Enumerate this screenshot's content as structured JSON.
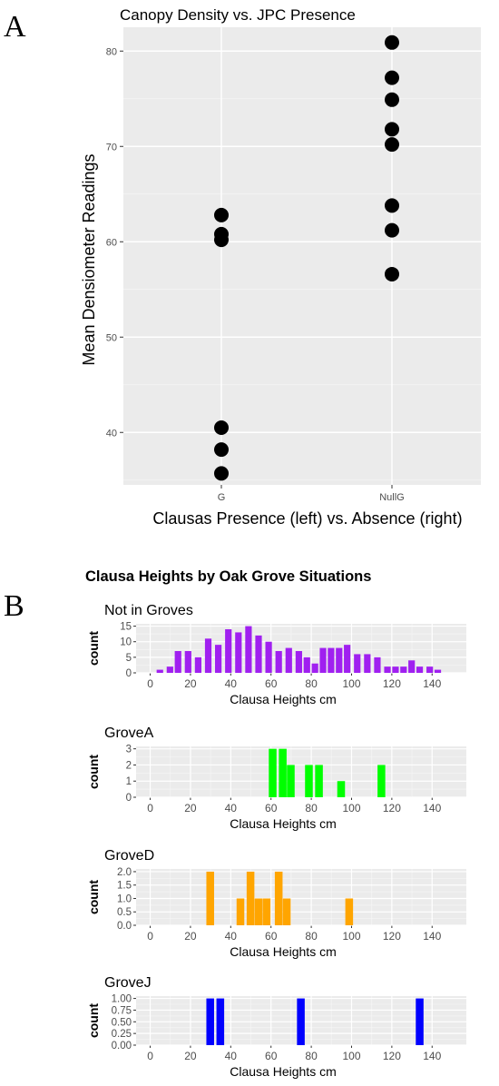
{
  "panel_a": {
    "letter": "A",
    "chart_data": {
      "type": "scatter",
      "title": "Canopy Density vs. JPC Presence",
      "xlabel": "Clausas Presence (left) vs. Absence (right)",
      "ylabel": "Mean Densiometer Readings",
      "categories": [
        "G",
        "NullG"
      ],
      "ylim": [
        34.5,
        82.5
      ],
      "yticks": [
        40,
        50,
        60,
        70,
        80
      ],
      "grid": true,
      "points": [
        {
          "x": "G",
          "y": 62.8
        },
        {
          "x": "G",
          "y": 60.8
        },
        {
          "x": "G",
          "y": 60.2
        },
        {
          "x": "G",
          "y": 40.5
        },
        {
          "x": "G",
          "y": 38.2
        },
        {
          "x": "G",
          "y": 35.7
        },
        {
          "x": "NullG",
          "y": 80.9
        },
        {
          "x": "NullG",
          "y": 77.2
        },
        {
          "x": "NullG",
          "y": 74.9
        },
        {
          "x": "NullG",
          "y": 71.8
        },
        {
          "x": "NullG",
          "y": 70.2
        },
        {
          "x": "NullG",
          "y": 63.8
        },
        {
          "x": "NullG",
          "y": 61.2
        },
        {
          "x": "NullG",
          "y": 56.6
        }
      ]
    }
  },
  "panel_b": {
    "letter": "B",
    "title": "Clausa Heights by Oak Grove Situations",
    "chart_data": [
      {
        "type": "bar",
        "title": "Not in Groves",
        "xlabel": "Clausa Heights cm",
        "ylabel": "count",
        "color": "#a020f0",
        "xlim": [
          -7,
          157
        ],
        "xticks": [
          0,
          20,
          40,
          60,
          80,
          100,
          120,
          140
        ],
        "ylim": [
          0,
          15.75
        ],
        "yticks": [
          0,
          5,
          10,
          15
        ],
        "ytick_labels": [
          "0",
          "5",
          "10",
          "15"
        ],
        "bin_width": 3.6,
        "bars": [
          {
            "x": 5,
            "y": 1
          },
          {
            "x": 10,
            "y": 2
          },
          {
            "x": 14,
            "y": 7
          },
          {
            "x": 19,
            "y": 7
          },
          {
            "x": 24,
            "y": 5
          },
          {
            "x": 29,
            "y": 11
          },
          {
            "x": 34,
            "y": 9
          },
          {
            "x": 39,
            "y": 14
          },
          {
            "x": 44,
            "y": 13
          },
          {
            "x": 49,
            "y": 15
          },
          {
            "x": 54,
            "y": 12
          },
          {
            "x": 59,
            "y": 10
          },
          {
            "x": 64,
            "y": 7
          },
          {
            "x": 69,
            "y": 8
          },
          {
            "x": 74,
            "y": 7
          },
          {
            "x": 78,
            "y": 5
          },
          {
            "x": 82,
            "y": 3
          },
          {
            "x": 86,
            "y": 8
          },
          {
            "x": 90,
            "y": 8
          },
          {
            "x": 94,
            "y": 8
          },
          {
            "x": 98,
            "y": 9
          },
          {
            "x": 103,
            "y": 6
          },
          {
            "x": 108,
            "y": 6
          },
          {
            "x": 113,
            "y": 5
          },
          {
            "x": 118,
            "y": 2
          },
          {
            "x": 122,
            "y": 2
          },
          {
            "x": 126,
            "y": 2
          },
          {
            "x": 130,
            "y": 4
          },
          {
            "x": 134,
            "y": 2
          },
          {
            "x": 139,
            "y": 2
          },
          {
            "x": 143,
            "y": 1
          }
        ]
      },
      {
        "type": "bar",
        "title": "GroveA",
        "xlabel": "Clausa Heights cm",
        "ylabel": "count",
        "color": "#00ff00",
        "xlim": [
          -7,
          157
        ],
        "xticks": [
          0,
          20,
          40,
          60,
          80,
          100,
          120,
          140
        ],
        "ylim": [
          0,
          3.15
        ],
        "yticks": [
          0,
          1,
          2,
          3
        ],
        "ytick_labels": [
          "0",
          "1",
          "2",
          "3"
        ],
        "bin_width": 4.2,
        "bars": [
          {
            "x": 61,
            "y": 3
          },
          {
            "x": 66,
            "y": 3
          },
          {
            "x": 70,
            "y": 2
          },
          {
            "x": 79,
            "y": 2
          },
          {
            "x": 84,
            "y": 2
          },
          {
            "x": 95,
            "y": 1
          },
          {
            "x": 115,
            "y": 2
          }
        ]
      },
      {
        "type": "bar",
        "title": "GroveD",
        "xlabel": "Clausa Heights cm",
        "ylabel": "count",
        "color": "#ffa500",
        "xlim": [
          -7,
          157
        ],
        "xticks": [
          0,
          20,
          40,
          60,
          80,
          100,
          120,
          140
        ],
        "ylim": [
          0,
          2.1
        ],
        "yticks": [
          0,
          0.5,
          1,
          1.5,
          2
        ],
        "ytick_labels": [
          "0.0",
          "0.5",
          "1.0",
          "1.5",
          "2.0"
        ],
        "bin_width": 4.2,
        "bars": [
          {
            "x": 30,
            "y": 2
          },
          {
            "x": 45,
            "y": 1
          },
          {
            "x": 50,
            "y": 2
          },
          {
            "x": 54,
            "y": 1
          },
          {
            "x": 58,
            "y": 1
          },
          {
            "x": 64,
            "y": 2
          },
          {
            "x": 68,
            "y": 1
          },
          {
            "x": 99,
            "y": 1
          }
        ]
      },
      {
        "type": "bar",
        "title": "GroveJ",
        "xlabel": "Clausa Heights cm",
        "ylabel": "count",
        "color": "#0000ff",
        "xlim": [
          -7,
          157
        ],
        "xticks": [
          0,
          20,
          40,
          60,
          80,
          100,
          120,
          140
        ],
        "ylim": [
          0,
          1.05
        ],
        "yticks": [
          0,
          0.25,
          0.5,
          0.75,
          1
        ],
        "ytick_labels": [
          "0.00",
          "0.25",
          "0.50",
          "0.75",
          "1.00"
        ],
        "bin_width": 4.2,
        "bars": [
          {
            "x": 30,
            "y": 1
          },
          {
            "x": 35,
            "y": 1
          },
          {
            "x": 75,
            "y": 1
          },
          {
            "x": 134,
            "y": 1
          }
        ]
      }
    ]
  }
}
